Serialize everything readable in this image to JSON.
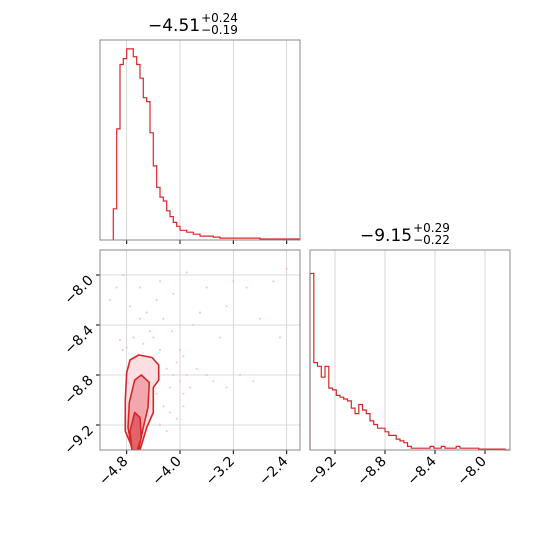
{
  "chart_data": [
    {
      "panel": "marginal-1",
      "type": "histogram",
      "title": {
        "value": "−4.51",
        "plus": "+0.24",
        "minus": "−0.19"
      },
      "xlim": [
        -5.2,
        -2.2
      ],
      "grid": true,
      "bins_x": [
        -5.0,
        -4.95,
        -4.9,
        -4.85,
        -4.8,
        -4.75,
        -4.7,
        -4.65,
        -4.6,
        -4.55,
        -4.5,
        -4.45,
        -4.4,
        -4.35,
        -4.3,
        -4.25,
        -4.2,
        -4.15,
        -4.1,
        -4.05,
        -4.0,
        -3.9,
        -3.8,
        -3.7,
        -3.6,
        -3.5,
        -3.4,
        -3.3,
        -3.2,
        -3.0,
        -2.8,
        -2.6,
        -2.4,
        -2.2
      ],
      "counts": [
        0.16,
        0.57,
        0.9,
        0.93,
        0.98,
        0.98,
        0.94,
        0.9,
        0.83,
        0.73,
        0.71,
        0.55,
        0.38,
        0.27,
        0.22,
        0.2,
        0.15,
        0.12,
        0.09,
        0.07,
        0.05,
        0.04,
        0.03,
        0.02,
        0.02,
        0.015,
        0.01,
        0.01,
        0.01,
        0.01,
        0.005,
        0.005,
        0.005,
        0.0
      ]
    },
    {
      "panel": "joint",
      "type": "scatter",
      "xlim": [
        -5.2,
        -2.2
      ],
      "ylim": [
        -9.4,
        -7.8
      ],
      "xticks": [
        -4.8,
        -4.0,
        -3.2,
        -2.4
      ],
      "yticks": [
        -8.0,
        -8.4,
        -8.8,
        -9.2
      ],
      "xtick_labels": [
        "−4.8",
        "−4.0",
        "−3.2",
        "−2.4"
      ],
      "ytick_labels": [
        "−8.0",
        "−8.4",
        "−8.8",
        "−9.2"
      ],
      "grid": true,
      "contour_levels": [
        {
          "level": "outer",
          "points": [
            [
              -4.7,
              -9.4
            ],
            [
              -4.82,
              -9.25
            ],
            [
              -4.82,
              -9.0
            ],
            [
              -4.8,
              -8.78
            ],
            [
              -4.75,
              -8.68
            ],
            [
              -4.62,
              -8.64
            ],
            [
              -4.42,
              -8.66
            ],
            [
              -4.32,
              -8.72
            ],
            [
              -4.32,
              -8.84
            ],
            [
              -4.4,
              -8.9
            ],
            [
              -4.4,
              -9.1
            ],
            [
              -4.5,
              -9.22
            ],
            [
              -4.6,
              -9.4
            ]
          ]
        },
        {
          "level": "middle",
          "points": [
            [
              -4.72,
              -9.4
            ],
            [
              -4.78,
              -9.22
            ],
            [
              -4.76,
              -9.02
            ],
            [
              -4.68,
              -8.84
            ],
            [
              -4.58,
              -8.8
            ],
            [
              -4.46,
              -8.86
            ],
            [
              -4.48,
              -9.06
            ],
            [
              -4.56,
              -9.24
            ],
            [
              -4.62,
              -9.4
            ]
          ]
        },
        {
          "level": "inner",
          "points": [
            [
              -4.72,
              -9.4
            ],
            [
              -4.75,
              -9.25
            ],
            [
              -4.68,
              -9.1
            ],
            [
              -4.6,
              -9.14
            ],
            [
              -4.58,
              -9.3
            ],
            [
              -4.64,
              -9.4
            ]
          ]
        }
      ],
      "scatter_points": [
        [
          -4.9,
          -8.52
        ],
        [
          -4.86,
          -8.6
        ],
        [
          -4.8,
          -8.58
        ],
        [
          -4.7,
          -8.5
        ],
        [
          -4.55,
          -8.55
        ],
        [
          -4.4,
          -8.5
        ],
        [
          -4.3,
          -8.6
        ],
        [
          -4.2,
          -8.75
        ],
        [
          -4.15,
          -8.9
        ],
        [
          -4.1,
          -8.8
        ],
        [
          -4.05,
          -8.7
        ],
        [
          -4.0,
          -8.85
        ],
        [
          -3.95,
          -8.95
        ],
        [
          -3.9,
          -8.8
        ],
        [
          -3.85,
          -8.9
        ],
        [
          -3.75,
          -8.75
        ],
        [
          -3.6,
          -8.8
        ],
        [
          -3.5,
          -8.85
        ],
        [
          -3.3,
          -8.9
        ],
        [
          -3.1,
          -8.8
        ],
        [
          -2.9,
          -8.85
        ],
        [
          -4.6,
          -8.1
        ],
        [
          -4.3,
          -8.05
        ],
        [
          -4.1,
          -8.15
        ],
        [
          -3.9,
          -7.98
        ],
        [
          -3.6,
          -8.1
        ],
        [
          -3.2,
          -8.05
        ],
        [
          -3.0,
          -8.1
        ],
        [
          -2.6,
          -8.05
        ],
        [
          -2.4,
          -7.95
        ],
        [
          -4.95,
          -8.1
        ],
        [
          -5.05,
          -8.2
        ],
        [
          -4.5,
          -8.3
        ],
        [
          -4.25,
          -8.35
        ],
        [
          -3.8,
          -8.4
        ],
        [
          -3.4,
          -8.5
        ],
        [
          -4.45,
          -8.7
        ],
        [
          -4.35,
          -8.95
        ],
        [
          -4.25,
          -9.05
        ],
        [
          -4.15,
          -9.1
        ],
        [
          -4.3,
          -9.2
        ],
        [
          -4.2,
          -9.25
        ],
        [
          -4.05,
          -9.15
        ],
        [
          -3.95,
          -9.05
        ],
        [
          -4.0,
          -8.6
        ],
        [
          -4.45,
          -8.45
        ],
        [
          -4.6,
          -8.35
        ],
        [
          -4.75,
          -8.25
        ],
        [
          -4.85,
          -8.0
        ],
        [
          -3.7,
          -8.3
        ],
        [
          -3.3,
          -8.25
        ],
        [
          -2.8,
          -8.35
        ],
        [
          -2.5,
          -8.5
        ],
        [
          -3.95,
          -8.65
        ],
        [
          -4.12,
          -8.45
        ],
        [
          -4.35,
          -8.2
        ]
      ]
    },
    {
      "panel": "marginal-2",
      "type": "histogram",
      "title": {
        "value": "−9.15",
        "plus": "+0.29",
        "minus": "−0.22"
      },
      "xlim": [
        -9.4,
        -7.8
      ],
      "xticks": [
        -9.2,
        -8.8,
        -8.4,
        -8.0
      ],
      "xtick_labels": [
        "−9.2",
        "−8.8",
        "−8.4",
        "−8.0"
      ],
      "grid": true,
      "bins_x": [
        -9.4,
        -9.37,
        -9.34,
        -9.31,
        -9.28,
        -9.25,
        -9.22,
        -9.19,
        -9.16,
        -9.13,
        -9.1,
        -9.07,
        -9.04,
        -9.01,
        -8.98,
        -8.95,
        -8.92,
        -8.89,
        -8.86,
        -8.83,
        -8.8,
        -8.77,
        -8.74,
        -8.71,
        -8.68,
        -8.65,
        -8.62,
        -8.59,
        -8.56,
        -8.53,
        -8.5,
        -8.47,
        -8.44,
        -8.41,
        -8.38,
        -8.35,
        -8.32,
        -8.29,
        -8.26,
        -8.23,
        -8.2,
        -8.17,
        -8.14,
        -8.11,
        -8.08,
        -8.05,
        -8.02,
        -7.99,
        -7.96,
        -7.93,
        -7.9,
        -7.87,
        -7.84
      ],
      "counts": [
        0.97,
        0.48,
        0.46,
        0.4,
        0.46,
        0.34,
        0.33,
        0.3,
        0.29,
        0.28,
        0.27,
        0.23,
        0.2,
        0.25,
        0.22,
        0.2,
        0.16,
        0.14,
        0.12,
        0.12,
        0.1,
        0.08,
        0.08,
        0.06,
        0.05,
        0.04,
        0.02,
        0.01,
        0.01,
        0.01,
        0.01,
        0.01,
        0.02,
        0.01,
        0.01,
        0.02,
        0.01,
        0.01,
        0.01,
        0.02,
        0.01,
        0.01,
        0.01,
        0.01,
        0.01,
        0.005,
        0.005,
        0.005,
        0.005,
        0.005,
        0.005,
        0.005,
        0.0
      ]
    }
  ],
  "colors": {
    "series": "#d62728",
    "fill_inner": "#e3636b",
    "fill_middle": "#f2a7ad",
    "fill_outer": "#fbdfe2",
    "grid": "#cfcfcf",
    "axes": "#888888"
  }
}
